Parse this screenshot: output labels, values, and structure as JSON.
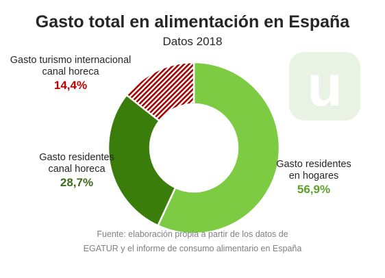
{
  "chart_data": {
    "type": "pie",
    "title": "Gasto total en alimentación en España",
    "subtitle": "Datos 2018",
    "donut": true,
    "slices": [
      {
        "label_lines": [
          "Gasto residentes",
          "en hogares"
        ],
        "value": 56.9,
        "value_label": "56,9%",
        "color": "#7dcb43",
        "value_color": "#5aa02c",
        "pattern": "solid"
      },
      {
        "label_lines": [
          "Gasto residentes",
          "canal horeca"
        ],
        "value": 28.7,
        "value_label": "28,7%",
        "color": "#3a7d0b",
        "value_color": "#3d6b1c",
        "pattern": "solid"
      },
      {
        "label_lines": [
          "Gasto turismo internacional",
          "canal horeca"
        ],
        "value": 14.4,
        "value_label": "14,4%",
        "color": "#a00000",
        "value_color": "#c00000",
        "pattern": "hatched"
      }
    ]
  },
  "source_lines": [
    "Fuente: elaboración propia a partir de los datos de",
    "EGATUR y el informe de consumo alimentario en España"
  ],
  "logo": {
    "letter": "u",
    "icon": "u-logo-icon"
  }
}
